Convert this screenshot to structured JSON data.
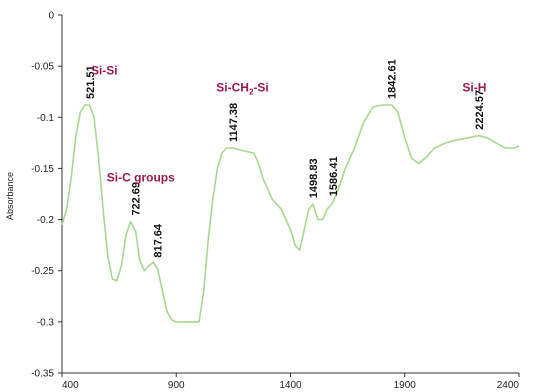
{
  "chart_data": {
    "type": "line",
    "title": "",
    "xlabel": "",
    "ylabel": "Absorbance",
    "xlim": [
      400,
      2400
    ],
    "ylim": [
      -0.35,
      0
    ],
    "x_ticks": [
      400,
      900,
      1400,
      1900,
      2400
    ],
    "y_ticks": [
      0,
      -0.05,
      -0.1,
      -0.15,
      -0.2,
      -0.25,
      -0.3,
      -0.35
    ],
    "y_tick_labels": [
      "0",
      "-0.05",
      "-0.1",
      "-0.15",
      "-0.2",
      "-0.25",
      "-0.3",
      "-0.35"
    ],
    "grid": false,
    "line_color": "#a8d890",
    "label_color": "#9b1a50",
    "series": [
      {
        "x": [
          400,
          420,
          440,
          460,
          480,
          500,
          521,
          540,
          560,
          580,
          600,
          620,
          640,
          660,
          680,
          700,
          723,
          740,
          760,
          780,
          800,
          818,
          840,
          860,
          880,
          900,
          950,
          1000,
          1020,
          1040,
          1060,
          1080,
          1100,
          1120,
          1147,
          1200,
          1240,
          1260,
          1280,
          1300,
          1320,
          1340,
          1360,
          1380,
          1400,
          1420,
          1440,
          1460,
          1480,
          1499,
          1520,
          1540,
          1560,
          1586,
          1610,
          1640,
          1680,
          1720,
          1760,
          1800,
          1843,
          1870,
          1900,
          1930,
          1960,
          1990,
          2030,
          2080,
          2130,
          2180,
          2225,
          2260,
          2300,
          2340,
          2380,
          2400
        ],
        "y": [
          -0.205,
          -0.19,
          -0.16,
          -0.12,
          -0.095,
          -0.088,
          -0.088,
          -0.1,
          -0.14,
          -0.19,
          -0.235,
          -0.258,
          -0.26,
          -0.245,
          -0.215,
          -0.202,
          -0.212,
          -0.24,
          -0.25,
          -0.245,
          -0.242,
          -0.248,
          -0.27,
          -0.29,
          -0.298,
          -0.3,
          -0.3,
          -0.3,
          -0.27,
          -0.22,
          -0.18,
          -0.15,
          -0.135,
          -0.13,
          -0.13,
          -0.133,
          -0.135,
          -0.145,
          -0.16,
          -0.17,
          -0.18,
          -0.185,
          -0.19,
          -0.2,
          -0.21,
          -0.225,
          -0.23,
          -0.21,
          -0.19,
          -0.185,
          -0.2,
          -0.2,
          -0.19,
          -0.183,
          -0.17,
          -0.15,
          -0.13,
          -0.105,
          -0.09,
          -0.088,
          -0.088,
          -0.095,
          -0.12,
          -0.14,
          -0.145,
          -0.14,
          -0.13,
          -0.125,
          -0.122,
          -0.12,
          -0.118,
          -0.12,
          -0.125,
          -0.13,
          -0.13,
          -0.128
        ]
      }
    ],
    "peak_labels": [
      {
        "x": 521.51,
        "y": -0.088,
        "text": "521.51"
      },
      {
        "x": 722.69,
        "y": -0.202,
        "text": "722.69"
      },
      {
        "x": 817.64,
        "y": -0.243,
        "text": "817.64"
      },
      {
        "x": 1147.38,
        "y": -0.13,
        "text": "1147.38"
      },
      {
        "x": 1498.83,
        "y": -0.185,
        "text": "1498.83"
      },
      {
        "x": 1586.41,
        "y": -0.183,
        "text": "1586.41"
      },
      {
        "x": 1842.61,
        "y": -0.088,
        "text": "1842.61"
      },
      {
        "x": 2224.57,
        "y": -0.118,
        "text": "2224.57"
      }
    ],
    "group_labels": [
      {
        "x": 585,
        "y": -0.058,
        "text": "Si-Si"
      },
      {
        "x": 745,
        "y": -0.163,
        "text": "Si-C groups"
      },
      {
        "x": 1190,
        "y": -0.075,
        "text_pre": "Si-CH",
        "sub": "2",
        "text_post": "-Si"
      },
      {
        "x": 2205,
        "y": -0.075,
        "text": "Si-H"
      }
    ]
  }
}
